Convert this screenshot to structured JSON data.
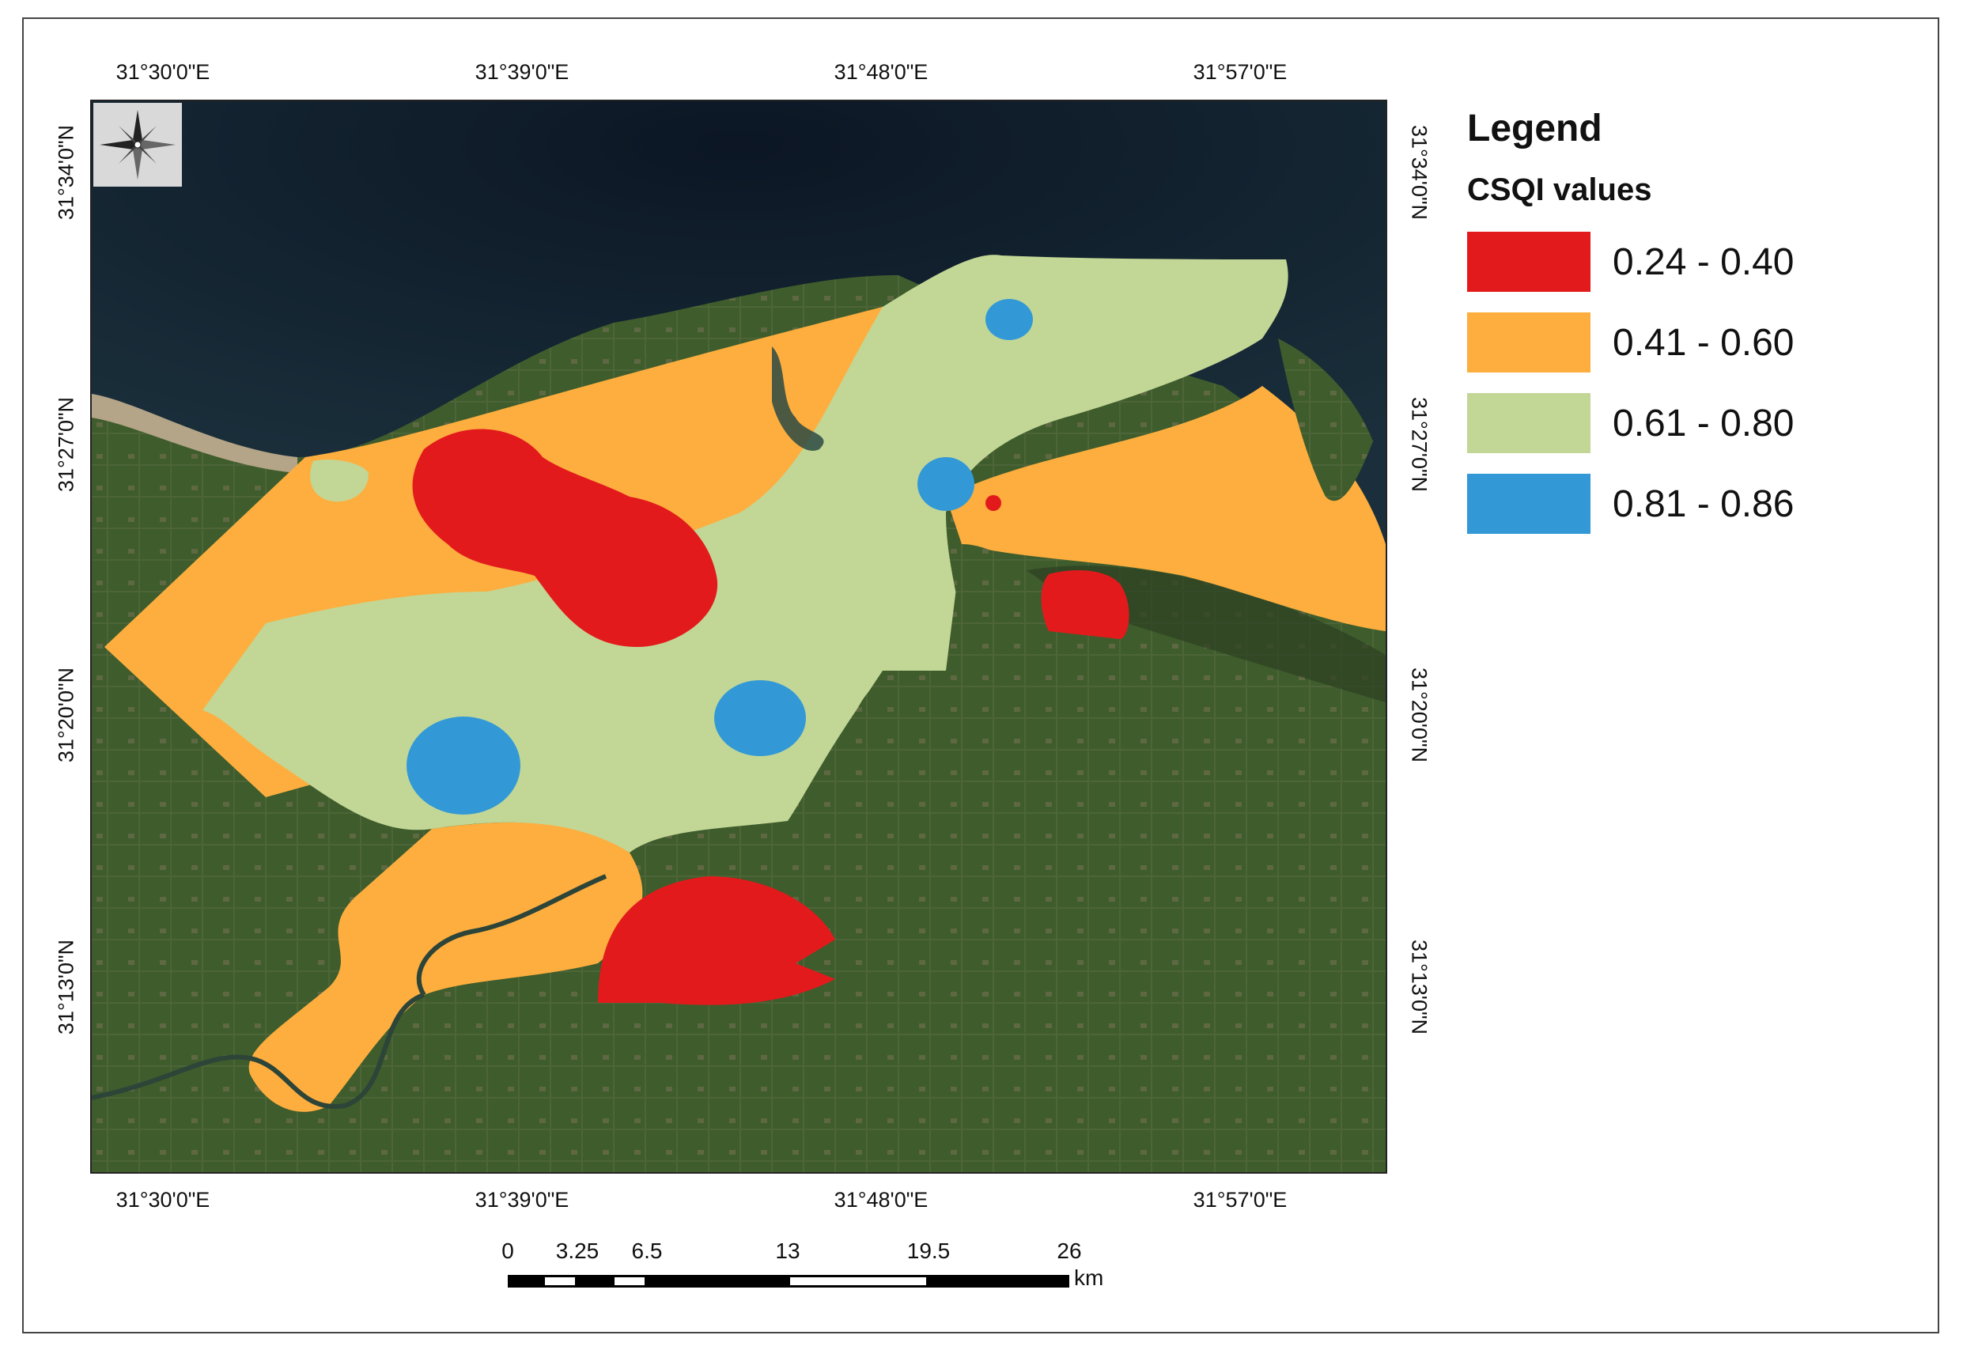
{
  "legend": {
    "title": "Legend",
    "subtitle": "CSQI values",
    "classes": [
      {
        "label": "0.24 - 0.40",
        "color": "#e31a1c"
      },
      {
        "label": "0.41 - 0.60",
        "color": "#fdae3f"
      },
      {
        "label": "0.61 - 0.80",
        "color": "#c2d796"
      },
      {
        "label": "0.81 - 0.86",
        "color": "#3399d6"
      }
    ]
  },
  "axes": {
    "longitude_ticks": [
      "31°30'0\"E",
      "31°39'0\"E",
      "31°48'0\"E",
      "31°57'0\"E"
    ],
    "latitude_ticks": [
      "31°34'0\"N",
      "31°27'0\"N",
      "31°20'0\"N",
      "31°13'0\"N"
    ]
  },
  "scale": {
    "labels": [
      "0",
      "3.25",
      "6.5",
      "13",
      "19.5",
      "26"
    ],
    "unit": "km"
  },
  "compass": {
    "icon": "north-arrow-compass-icon"
  },
  "colors": {
    "sea": "#0f1c2b",
    "land": "#3d5a2a",
    "beach": "#a89a80"
  }
}
